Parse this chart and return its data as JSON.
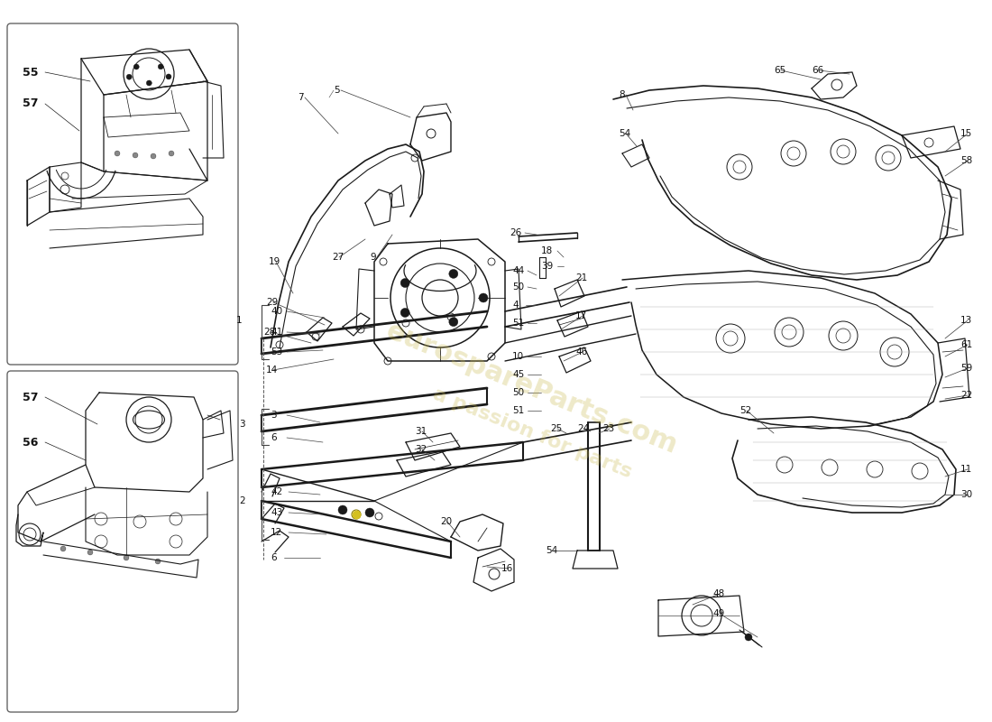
{
  "bg": "#ffffff",
  "lc": "#1a1a1a",
  "wm1": "eurospareParts.com",
  "wm2": "a passion for parts",
  "wmc": "#c8b84a",
  "wma": 0.3
}
